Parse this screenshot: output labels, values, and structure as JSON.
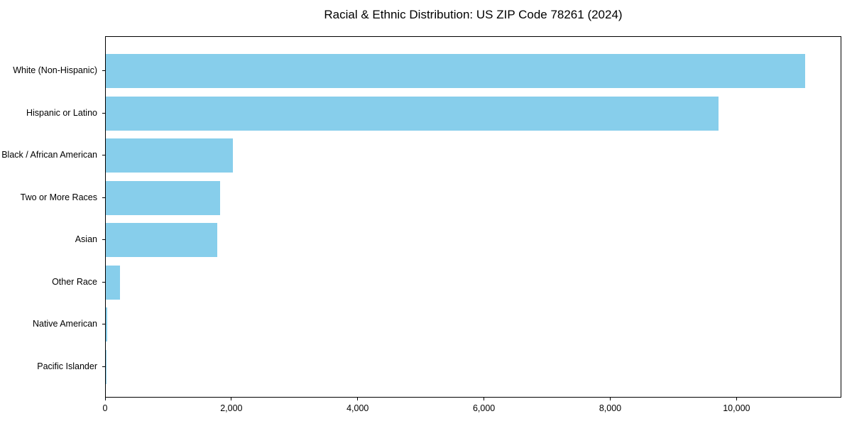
{
  "title": "Racial & Ethnic Distribution: US ZIP Code 78261 (2024)",
  "colors": {
    "bar": "#87CEEB",
    "axis": "#000000",
    "background": "#ffffff",
    "text": "#000000"
  },
  "chart_data": {
    "type": "bar",
    "orientation": "horizontal",
    "title": "Racial & Ethnic Distribution: US ZIP Code 78261 (2024)",
    "xlabel": "",
    "ylabel": "",
    "categories": [
      "White (Non-Hispanic)",
      "Hispanic or Latino",
      "Black / African American",
      "Two or More Races",
      "Asian",
      "Other Race",
      "Native American",
      "Pacific Islander"
    ],
    "values": [
      11100,
      9720,
      2020,
      1810,
      1770,
      230,
      20,
      10
    ],
    "xlim": [
      0,
      11660
    ],
    "x_ticks": [
      0,
      2000,
      4000,
      6000,
      8000,
      10000
    ],
    "x_tick_labels": [
      "0",
      "2,000",
      "4,000",
      "6,000",
      "8,000",
      "10,000"
    ],
    "bar_color": "#87CEEB",
    "grid": false,
    "legend": false
  }
}
